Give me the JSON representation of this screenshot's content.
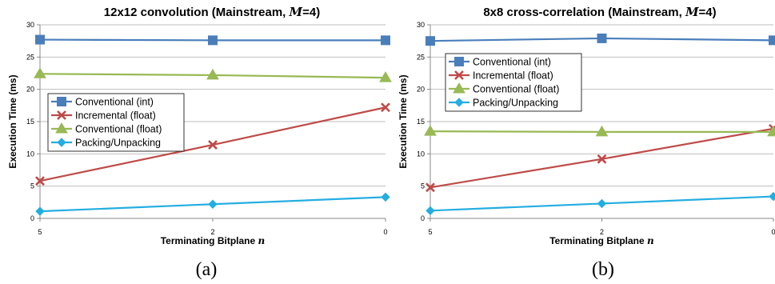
{
  "chart_data": [
    {
      "type": "line",
      "panel_label": "(a)",
      "title": "12x12 convolution (Mainstream, M=4)",
      "xlabel": "Terminating Bitplane n",
      "ylabel": "Execution Time (ms)",
      "categories": [
        "5",
        "2",
        "0"
      ],
      "ylim": [
        0,
        30
      ],
      "yticks": [
        0,
        5,
        10,
        15,
        20,
        25,
        30
      ],
      "grid": true,
      "legend_position": "center-left",
      "series": [
        {
          "name": "Conventional (int)",
          "values": [
            27.7,
            27.6,
            27.6
          ],
          "color": "#4a7ebb",
          "marker": "square"
        },
        {
          "name": "Incremental (float)",
          "values": [
            5.8,
            11.4,
            17.2
          ],
          "color": "#be4b48",
          "marker": "x"
        },
        {
          "name": "Conventional (float)",
          "values": [
            22.4,
            22.2,
            21.8
          ],
          "color": "#98b954",
          "marker": "triangle"
        },
        {
          "name": "Packing/Unpacking",
          "values": [
            1.1,
            2.2,
            3.3
          ],
          "color": "#24aee0",
          "marker": "diamond"
        }
      ]
    },
    {
      "type": "line",
      "panel_label": "(b)",
      "title": "8x8 cross-correlation (Mainstream, M=4)",
      "xlabel": "Terminating Bitplane n",
      "ylabel": "Execution Time (ms)",
      "categories": [
        "5",
        "2",
        "0"
      ],
      "ylim": [
        0,
        30
      ],
      "yticks": [
        0,
        5,
        10,
        15,
        20,
        25,
        30
      ],
      "grid": true,
      "legend_position": "top-left",
      "series": [
        {
          "name": "Conventional (int)",
          "values": [
            27.5,
            27.9,
            27.6
          ],
          "color": "#4a7ebb",
          "marker": "square"
        },
        {
          "name": "Incremental (float)",
          "values": [
            4.8,
            9.2,
            13.9
          ],
          "color": "#be4b48",
          "marker": "x"
        },
        {
          "name": "Conventional (float)",
          "values": [
            13.5,
            13.4,
            13.4
          ],
          "color": "#98b954",
          "marker": "triangle"
        },
        {
          "name": "Packing/Unpacking",
          "values": [
            1.2,
            2.3,
            3.4
          ],
          "color": "#24aee0",
          "marker": "diamond"
        }
      ]
    }
  ]
}
